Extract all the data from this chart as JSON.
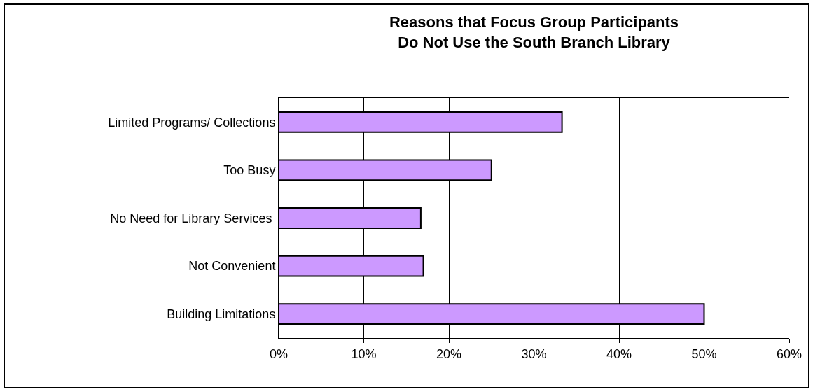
{
  "chart_data": {
    "type": "bar",
    "orientation": "horizontal",
    "title": "Reasons that Focus Group Participants\nDo Not Use the South Branch Library",
    "categories": [
      "Limited Programs/ Collections",
      "Too Busy",
      "No Need for Library Services ",
      "Not Convenient",
      "Building Limitations"
    ],
    "values": [
      33.3,
      25,
      16.7,
      17,
      50
    ],
    "color": "#cc99ff",
    "xlim": [
      0,
      60
    ],
    "xticks": [
      {
        "value": 0,
        "label": "0%"
      },
      {
        "value": 10,
        "label": "10%"
      },
      {
        "value": 20,
        "label": "20%"
      },
      {
        "value": 30,
        "label": "30%"
      },
      {
        "value": 40,
        "label": "40%"
      },
      {
        "value": 50,
        "label": "50%"
      },
      {
        "value": 60,
        "label": "60%"
      }
    ],
    "grid": "x"
  }
}
